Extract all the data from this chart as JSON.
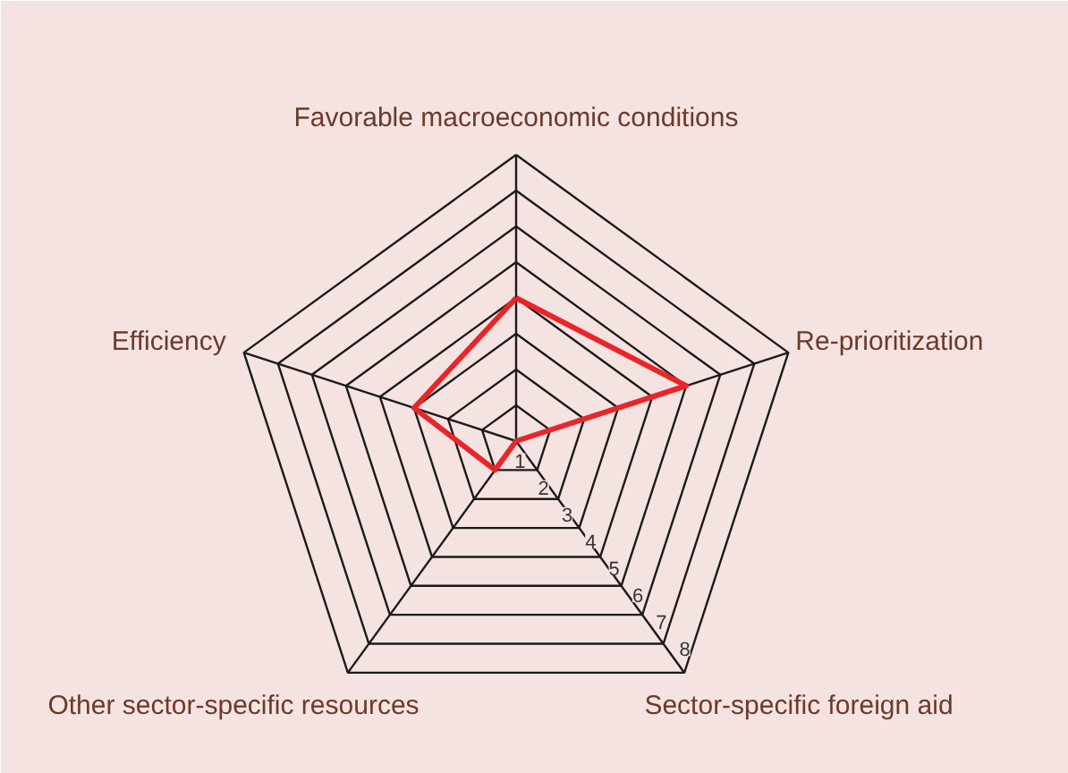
{
  "chart_data": {
    "type": "radar",
    "categories": [
      "Favorable macroeconomic conditions",
      "Re-prioritization",
      "Sector-specific foreign aid",
      "Other sector-specific resources",
      "Efficiency"
    ],
    "series": [
      {
        "color": "#e8262a",
        "values": [
          4,
          5,
          0,
          1,
          3
        ]
      }
    ],
    "ylim": [
      0,
      8
    ],
    "yticks": [
      1,
      2,
      3,
      4,
      5,
      6,
      7,
      8
    ],
    "grid": true
  }
}
